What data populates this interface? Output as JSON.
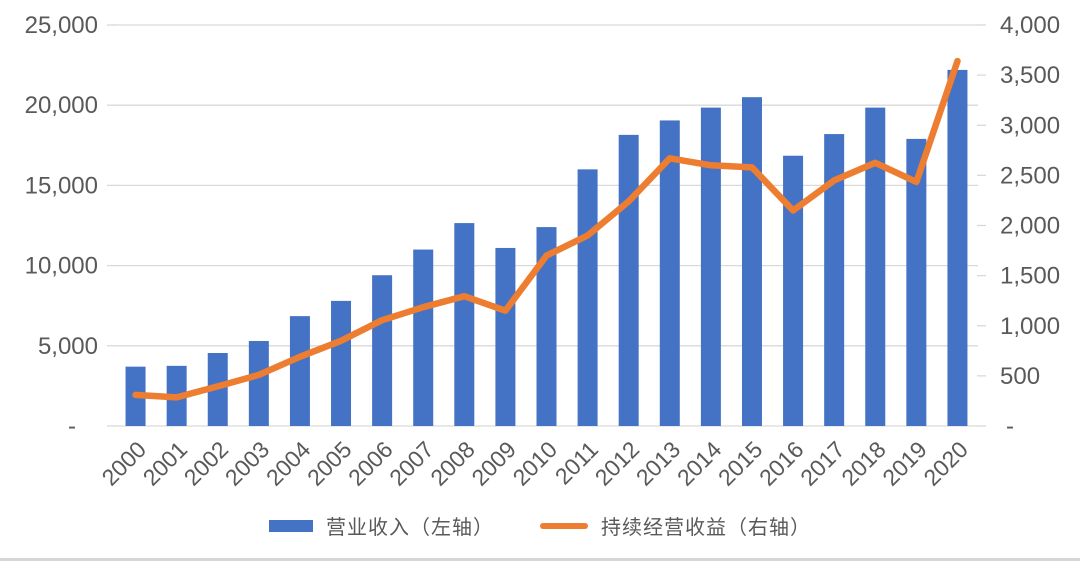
{
  "chart_data": {
    "type": "combo-bar-line",
    "title": "",
    "categories": [
      "2000",
      "2001",
      "2002",
      "2003",
      "2004",
      "2005",
      "2006",
      "2007",
      "2008",
      "2009",
      "2010",
      "2011",
      "2012",
      "2013",
      "2014",
      "2015",
      "2016",
      "2017",
      "2018",
      "2019",
      "2020"
    ],
    "series": [
      {
        "name": "营业收入（左轴）",
        "chart_type": "bar",
        "axis": "left",
        "color": "#4472C4",
        "values": [
          3700,
          3750,
          4550,
          5300,
          6850,
          7800,
          9400,
          11000,
          12650,
          11100,
          12400,
          16000,
          18150,
          19050,
          19850,
          20500,
          16850,
          18200,
          19850,
          17900,
          22200
        ]
      },
      {
        "name": "持续经营收益（右轴）",
        "chart_type": "line",
        "axis": "right",
        "color": "#ED7D31",
        "values": [
          310,
          285,
          395,
          510,
          690,
          850,
          1055,
          1185,
          1295,
          1150,
          1700,
          1900,
          2240,
          2670,
          2600,
          2580,
          2150,
          2450,
          2625,
          2435,
          3640
        ]
      }
    ],
    "left_axis": {
      "min": 0,
      "max": 25000,
      "step": 5000,
      "tick_labels": [
        "-",
        "5,000",
        "10,000",
        "15,000",
        "20,000",
        "25,000"
      ]
    },
    "right_axis": {
      "min": 0,
      "max": 4000,
      "step": 500,
      "tick_labels": [
        "-",
        "500",
        "1,000",
        "1,500",
        "2,000",
        "2,500",
        "3,000",
        "3,500",
        "4,000"
      ]
    },
    "grid": true,
    "legend_position": "bottom",
    "x_tick_label_rotation": 45
  },
  "colors": {
    "bar": "#4472C4",
    "line": "#ED7D31",
    "grid": "#D9D9D9",
    "tick": "#D9D9D9",
    "axis_text": "#595959",
    "legend_text": "#595959",
    "divider": "#D6D6D6"
  }
}
